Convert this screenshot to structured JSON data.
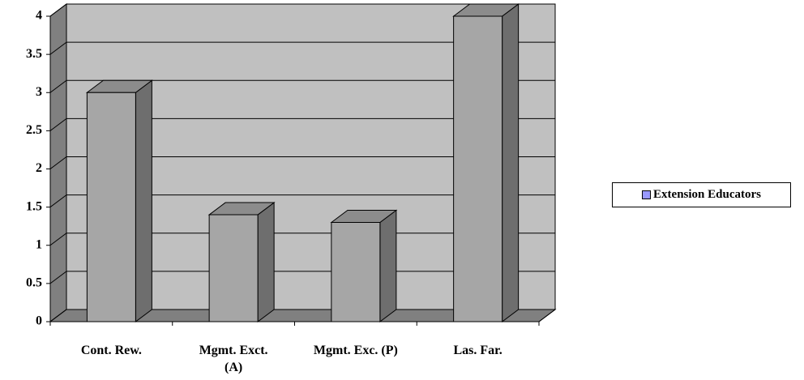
{
  "chart_data": {
    "type": "bar3d",
    "categories": [
      "Cont. Rew.",
      "Mgmt. Exct. (A)",
      "Mgmt. Exc. (P)",
      "Las. Far."
    ],
    "series": [
      {
        "name": "Extension Educators",
        "color": "#a6a6a6",
        "legend_marker_color": "#9999ff",
        "values": [
          3,
          1.4,
          1.3,
          4
        ]
      }
    ],
    "ylim": [
      0,
      4
    ],
    "yticks": [
      0,
      0.5,
      1,
      1.5,
      2,
      2.5,
      3,
      3.5,
      4
    ],
    "grid": true,
    "legend": "right"
  }
}
